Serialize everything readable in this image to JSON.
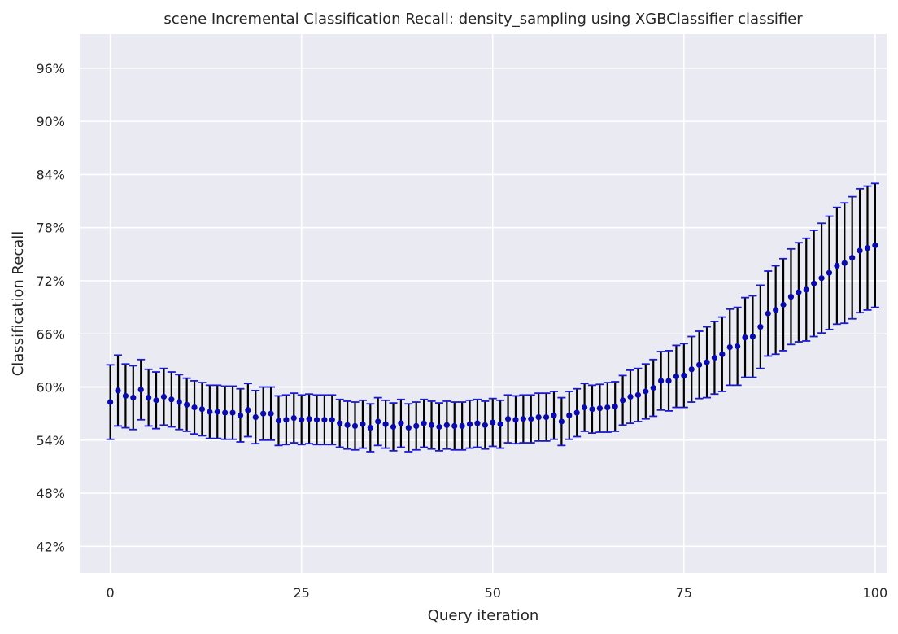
{
  "chart_data": {
    "type": "scatter",
    "title": "scene Incremental Classification Recall: density_sampling using XGBClassifier classifier",
    "xlabel": "Query iteration",
    "ylabel": "Classification Recall",
    "xlim": [
      -4,
      101.5
    ],
    "ylim": [
      0.39,
      0.9985
    ],
    "xticks": [
      0,
      25,
      50,
      75,
      100
    ],
    "xtick_labels": [
      "0",
      "25",
      "50",
      "75",
      "100"
    ],
    "yticks": [
      0.42,
      0.48,
      0.54,
      0.6,
      0.66,
      0.72,
      0.78,
      0.84,
      0.9,
      0.96
    ],
    "ytick_labels": [
      "42%",
      "48%",
      "54%",
      "60%",
      "66%",
      "72%",
      "78%",
      "84%",
      "90%",
      "96%"
    ],
    "grid": true,
    "background": "#eaeaf2",
    "grid_color": "#ffffff",
    "marker_color": "#0a0aa8",
    "errorbar_color": "#000000",
    "cap_color": "#1a1ad0",
    "series": [
      {
        "x": [
          0,
          1,
          2,
          3,
          4,
          5,
          6,
          7,
          8,
          9,
          10,
          11,
          12,
          13,
          14,
          15,
          16,
          17,
          18,
          19,
          20,
          21,
          22,
          23,
          24,
          25,
          26,
          27,
          28,
          29,
          30,
          31,
          32,
          33,
          34,
          35,
          36,
          37,
          38,
          39,
          40,
          41,
          42,
          43,
          44,
          45,
          46,
          47,
          48,
          49,
          50,
          51,
          52,
          53,
          54,
          55,
          56,
          57,
          58,
          59,
          60,
          61,
          62,
          63,
          64,
          65,
          66,
          67,
          68,
          69,
          70,
          71,
          72,
          73,
          74,
          75,
          76,
          77,
          78,
          79,
          80,
          81,
          82,
          83,
          84,
          85,
          86,
          87,
          88,
          89,
          90,
          91,
          92,
          93,
          94,
          95,
          96,
          97,
          98,
          99,
          100
        ],
        "y": [
          0.583,
          0.596,
          0.59,
          0.588,
          0.597,
          0.588,
          0.585,
          0.589,
          0.586,
          0.583,
          0.58,
          0.577,
          0.575,
          0.572,
          0.572,
          0.571,
          0.571,
          0.568,
          0.574,
          0.566,
          0.57,
          0.57,
          0.562,
          0.563,
          0.565,
          0.563,
          0.564,
          0.563,
          0.563,
          0.563,
          0.559,
          0.557,
          0.556,
          0.558,
          0.554,
          0.561,
          0.558,
          0.555,
          0.559,
          0.554,
          0.556,
          0.559,
          0.557,
          0.555,
          0.557,
          0.556,
          0.556,
          0.558,
          0.559,
          0.557,
          0.56,
          0.558,
          0.564,
          0.563,
          0.564,
          0.564,
          0.566,
          0.566,
          0.568,
          0.561,
          0.568,
          0.571,
          0.577,
          0.575,
          0.576,
          0.577,
          0.578,
          0.585,
          0.589,
          0.591,
          0.595,
          0.599,
          0.607,
          0.607,
          0.612,
          0.613,
          0.62,
          0.625,
          0.628,
          0.633,
          0.637,
          0.645,
          0.646,
          0.656,
          0.657,
          0.668,
          0.683,
          0.687,
          0.693,
          0.702,
          0.707,
          0.71,
          0.717,
          0.723,
          0.729,
          0.737,
          0.74,
          0.746,
          0.754,
          0.757,
          0.76
        ],
        "yerr": [
          0.042,
          0.04,
          0.036,
          0.036,
          0.034,
          0.032,
          0.032,
          0.032,
          0.031,
          0.031,
          0.03,
          0.03,
          0.03,
          0.03,
          0.03,
          0.03,
          0.03,
          0.03,
          0.03,
          0.03,
          0.03,
          0.03,
          0.028,
          0.028,
          0.028,
          0.028,
          0.028,
          0.028,
          0.028,
          0.028,
          0.027,
          0.027,
          0.027,
          0.027,
          0.027,
          0.027,
          0.027,
          0.027,
          0.027,
          0.027,
          0.027,
          0.027,
          0.027,
          0.027,
          0.027,
          0.027,
          0.027,
          0.027,
          0.027,
          0.027,
          0.027,
          0.027,
          0.027,
          0.027,
          0.027,
          0.027,
          0.027,
          0.027,
          0.027,
          0.027,
          0.027,
          0.027,
          0.027,
          0.027,
          0.027,
          0.028,
          0.028,
          0.028,
          0.03,
          0.03,
          0.031,
          0.032,
          0.033,
          0.034,
          0.035,
          0.036,
          0.037,
          0.038,
          0.04,
          0.041,
          0.042,
          0.043,
          0.044,
          0.045,
          0.046,
          0.047,
          0.048,
          0.05,
          0.052,
          0.054,
          0.056,
          0.058,
          0.06,
          0.062,
          0.064,
          0.066,
          0.068,
          0.069,
          0.07,
          0.07,
          0.07
        ]
      }
    ]
  }
}
